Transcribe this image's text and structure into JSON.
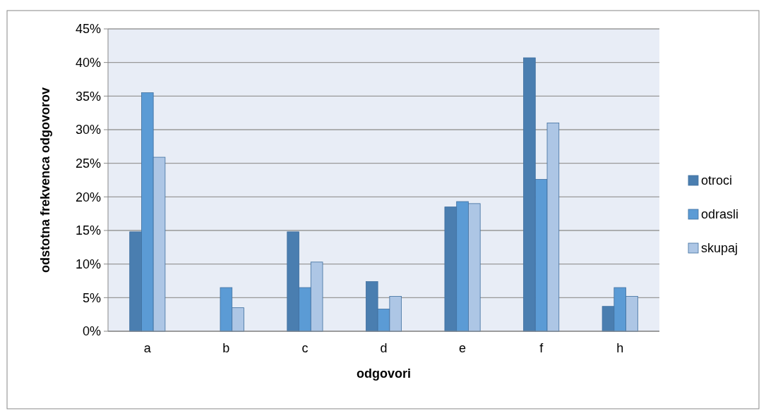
{
  "chart_data": {
    "type": "bar",
    "xlabel": "odgovori",
    "ylabel": "odstotna frekvenca odgovorov",
    "categories": [
      "a",
      "b",
      "c",
      "d",
      "e",
      "f",
      "h"
    ],
    "series": [
      {
        "name": "otroci",
        "color": "#4a7eb0",
        "values": [
          14.8,
          0,
          14.8,
          7.4,
          18.5,
          40.7,
          3.7
        ]
      },
      {
        "name": "odrasli",
        "color": "#5b9bd5",
        "values": [
          35.5,
          6.5,
          6.5,
          3.3,
          19.3,
          22.6,
          6.5
        ]
      },
      {
        "name": "skupaj",
        "color": "#adc6e5",
        "values": [
          25.9,
          3.5,
          10.3,
          5.2,
          19.0,
          31.0,
          5.2
        ]
      }
    ],
    "ylim": [
      0,
      45
    ],
    "yticks": [
      {
        "value": 0,
        "label": "0%"
      },
      {
        "value": 5,
        "label": "5%"
      },
      {
        "value": 10,
        "label": "10%"
      },
      {
        "value": 15,
        "label": "15%"
      },
      {
        "value": 20,
        "label": "20%"
      },
      {
        "value": 25,
        "label": "25%"
      },
      {
        "value": 30,
        "label": "30%"
      },
      {
        "value": 35,
        "label": "35%"
      },
      {
        "value": 40,
        "label": "40%"
      },
      {
        "value": 45,
        "label": "45%"
      }
    ],
    "grid": "y",
    "legend": "right"
  }
}
